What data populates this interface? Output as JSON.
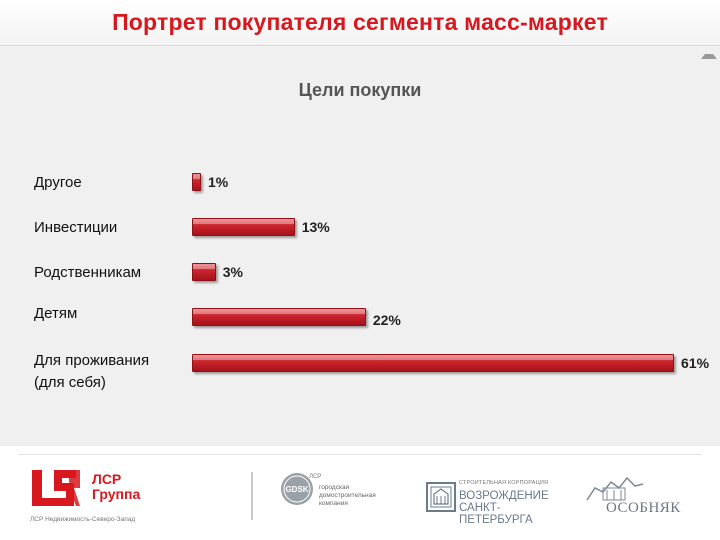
{
  "header": {
    "title": "Портрет покупателя сегмента масс-маркет"
  },
  "chart_data": {
    "type": "bar",
    "orientation": "horizontal",
    "title": "Цели покупки",
    "categories": [
      "Другое",
      "Инвестиции",
      "Родственникам",
      "Детям",
      "Для проживания (для себя)"
    ],
    "category_lines": [
      [
        "Другое"
      ],
      [
        "Инвестиции"
      ],
      [
        "Родственникам"
      ],
      [
        "Детям"
      ],
      [
        "Для проживания",
        "(для себя)"
      ]
    ],
    "values": [
      1,
      13,
      3,
      22,
      61
    ],
    "value_labels": [
      "1%",
      "13%",
      "3%",
      "22%",
      "61%"
    ],
    "unit": "%",
    "xlim": [
      0,
      61
    ],
    "bar_color": "#c8222b",
    "grid": false,
    "legend": "none"
  },
  "footer": {
    "lsr": {
      "brand_line1": "ЛСР",
      "brand_line2": "Группа",
      "tagline": "ЛСР Недвижимость-Северо-Запад",
      "accent": "#d7191f"
    },
    "gdsk": {
      "badge": "GDSK",
      "sup": "ЛСР",
      "text_lines": [
        "городская",
        "домостроительная",
        "компания"
      ]
    },
    "vozrozhdenie": {
      "small": "СТРОИТЕЛЬНАЯ КОРПОРАЦИЯ",
      "line1": "ВОЗРОЖДЕНИЕ",
      "line2": "САНКТ-ПЕТЕРБУРГА"
    },
    "osobnyak": {
      "name": "ОСОБНЯК"
    }
  }
}
